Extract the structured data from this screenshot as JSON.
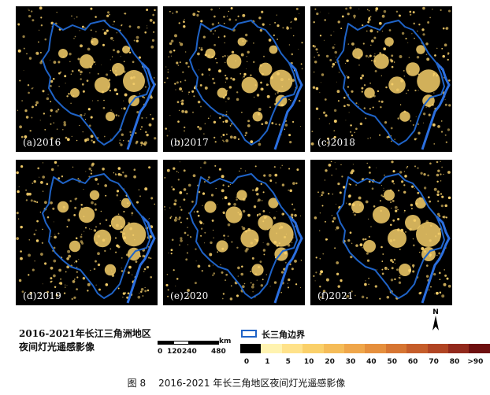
{
  "panels": [
    {
      "label": "(a)2016"
    },
    {
      "label": "(b)2017"
    },
    {
      "label": "(c)2018"
    },
    {
      "label": "(d)2019"
    },
    {
      "label": "(e)2020"
    },
    {
      "label": "(f)2021"
    }
  ],
  "legend": {
    "title_line1": "2016-2021年长江三角洲地区",
    "title_line2": "夜间灯光遥感影像",
    "boundary_label": "长三角边界",
    "scale_unit": "km",
    "scale_ticks": [
      "0",
      "120",
      "240",
      "480"
    ],
    "colorbar_ticks": [
      "0",
      "1",
      "5",
      "10",
      "20",
      "30",
      "40",
      "50",
      "60",
      "70",
      "80",
      ">90"
    ],
    "colorbar_colors": [
      "#000000",
      "#fff3b0",
      "#ffe28a",
      "#fad06a",
      "#f5bc58",
      "#efa64a",
      "#e58f3d",
      "#d67532",
      "#c55d2a",
      "#b04423",
      "#92291c",
      "#6e1010"
    ]
  },
  "colors": {
    "boundary": "#1f63c7",
    "coast": "#2b6fe0",
    "lights": "#f6cf6a",
    "background": "#000000"
  },
  "caption": {
    "number": "图 8",
    "text": "2016-2021 年长三角地区夜间灯光遥感影像"
  }
}
